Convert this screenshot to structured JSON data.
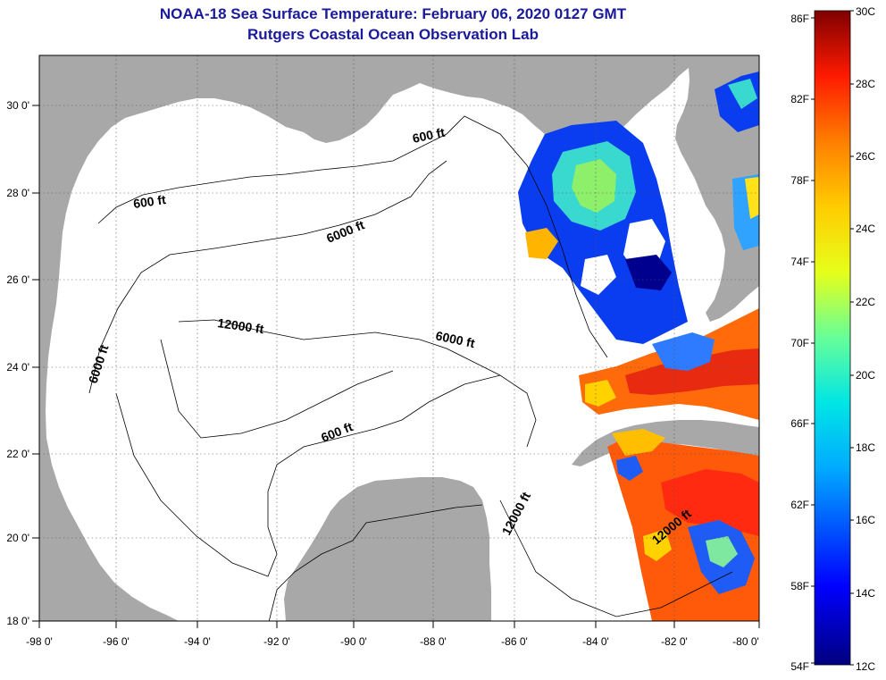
{
  "header": {
    "title": "NOAA-18 Sea Surface Temperature:  February 06, 2020 0127 GMT",
    "subtitle": "Rutgers Coastal Ocean Observation Lab"
  },
  "map": {
    "lon_ticks": [
      "-98 0'",
      "-96 0'",
      "-94 0'",
      "-92 0'",
      "-90 0'",
      "-88 0'",
      "-86 0'",
      "-84 0'",
      "-82 0'",
      "-80 0'"
    ],
    "lat_ticks": [
      "18 0'",
      "20 0'",
      "22 0'",
      "24 0'",
      "26 0'",
      "28 0'",
      "30 0'"
    ],
    "contour_labels": [
      "600 ft",
      "600 ft",
      "6000 ft",
      "12000 ft",
      "6000 ft",
      "6000 ft",
      "600 ft",
      "12000 ft",
      "12000 ft"
    ]
  },
  "colorbar": {
    "fahrenheit": [
      "86F",
      "82F",
      "78F",
      "74F",
      "70F",
      "66F",
      "62F",
      "58F",
      "54F"
    ],
    "celsius": [
      "30C",
      "28C",
      "26C",
      "24C",
      "22C",
      "20C",
      "18C",
      "16C",
      "14C",
      "12C"
    ]
  },
  "colors": {
    "title": "#1a1a9a",
    "land": "#a8a8a8",
    "water_nodata": "#ffffff"
  }
}
